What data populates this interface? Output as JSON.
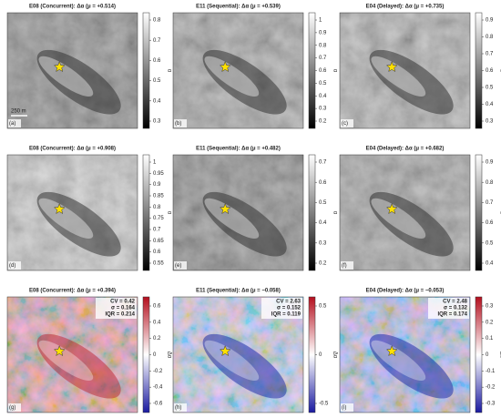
{
  "panels": [
    {
      "title": "E08 (Concurrent): Δα (μ = +0.514)",
      "label": "(a)",
      "scale": "250 m",
      "cbar_label": "α",
      "ticks": [
        "0.8",
        "0.7",
        "0.6",
        "0.5",
        "0.4",
        "0.3"
      ]
    },
    {
      "title": "E11 (Sequential): Δα (μ = +0.539)",
      "label": "(b)",
      "cbar_label": "α",
      "ticks": [
        "1",
        "0.9",
        "0.8",
        "0.7",
        "0.6",
        "0.5",
        "0.4",
        "0.3",
        "0.2"
      ]
    },
    {
      "title": "E04 (Delayed): Δα (μ = +0.735)",
      "label": "(c)",
      "cbar_label": "α",
      "ticks": [
        "0.9",
        "0.8",
        "0.7",
        "0.6",
        "0.5",
        "0.4",
        "0.3"
      ]
    },
    {
      "title": "E08 (Concurrent): Δα (μ = +0.908)",
      "label": "(d)",
      "cbar_label": "α",
      "ticks": [
        "1",
        "0.95",
        "0.9",
        "0.85",
        "0.8",
        "0.75",
        "0.7",
        "0.65",
        "0.6",
        "0.55"
      ]
    },
    {
      "title": "E11 (Sequential): Δα (μ = +0.482)",
      "label": "(e)",
      "cbar_label": "α",
      "ticks": [
        "0.7",
        "0.6",
        "0.5",
        "0.4",
        "0.3",
        "0.2"
      ]
    },
    {
      "title": "E04 (Delayed): Δα (μ = +0.682)",
      "label": "(f)",
      "cbar_label": "α",
      "ticks": [
        "0.9",
        "0.8",
        "0.7",
        "0.6",
        "0.5",
        "0.4"
      ]
    },
    {
      "title": "E08 (Concurrent): Δα (μ = +0.394)",
      "label": "(g)",
      "cbar_label": "Δα",
      "ticks": [
        "0.6",
        "0.4",
        "0.2",
        "0",
        "-0.2",
        "-0.4",
        "-0.6"
      ],
      "stats": [
        "CV = 0.42",
        "σ = 0.164",
        "IQR = 0.214"
      ]
    },
    {
      "title": "E11 (Sequential): Δα (μ = −0.058)",
      "label": "(h)",
      "cbar_label": "Δα",
      "ticks": [
        "0.5",
        "0",
        "-0.5"
      ],
      "stats": [
        "CV = 2.63",
        "σ = 0.152",
        "IQR = 0.119"
      ]
    },
    {
      "title": "E04 (Delayed): Δα (μ = −0.053)",
      "label": "(i)",
      "cbar_label": "Δα",
      "ticks": [
        "0.3",
        "0.2",
        "0.1",
        "0",
        "-0.1",
        "-0.2",
        "-0.3"
      ],
      "stats": [
        "CV = 2.48",
        "σ = 0.132",
        "IQR = 0.174"
      ]
    }
  ]
}
